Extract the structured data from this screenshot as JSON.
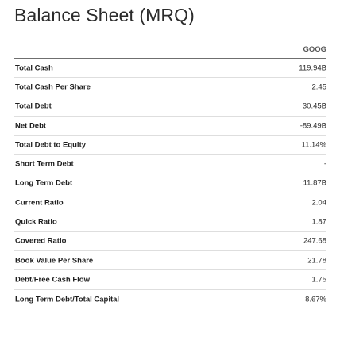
{
  "title": "Balance Sheet (MRQ)",
  "column_header": "GOOG",
  "rows": [
    {
      "label": "Total Cash",
      "value": "119.94B"
    },
    {
      "label": "Total Cash Per Share",
      "value": "2.45"
    },
    {
      "label": "Total Debt",
      "value": "30.45B"
    },
    {
      "label": "Net Debt",
      "value": "-89.49B"
    },
    {
      "label": "Total Debt to Equity",
      "value": "11.14%"
    },
    {
      "label": "Short Term Debt",
      "value": "-"
    },
    {
      "label": "Long Term Debt",
      "value": "11.87B"
    },
    {
      "label": "Current Ratio",
      "value": "2.04"
    },
    {
      "label": "Quick Ratio",
      "value": "1.87"
    },
    {
      "label": "Covered Ratio",
      "value": "247.68"
    },
    {
      "label": "Book Value Per Share",
      "value": "21.78"
    },
    {
      "label": "Debt/Free Cash Flow",
      "value": "1.75"
    },
    {
      "label": "Long Term Debt/Total Capital",
      "value": "8.67%"
    }
  ]
}
